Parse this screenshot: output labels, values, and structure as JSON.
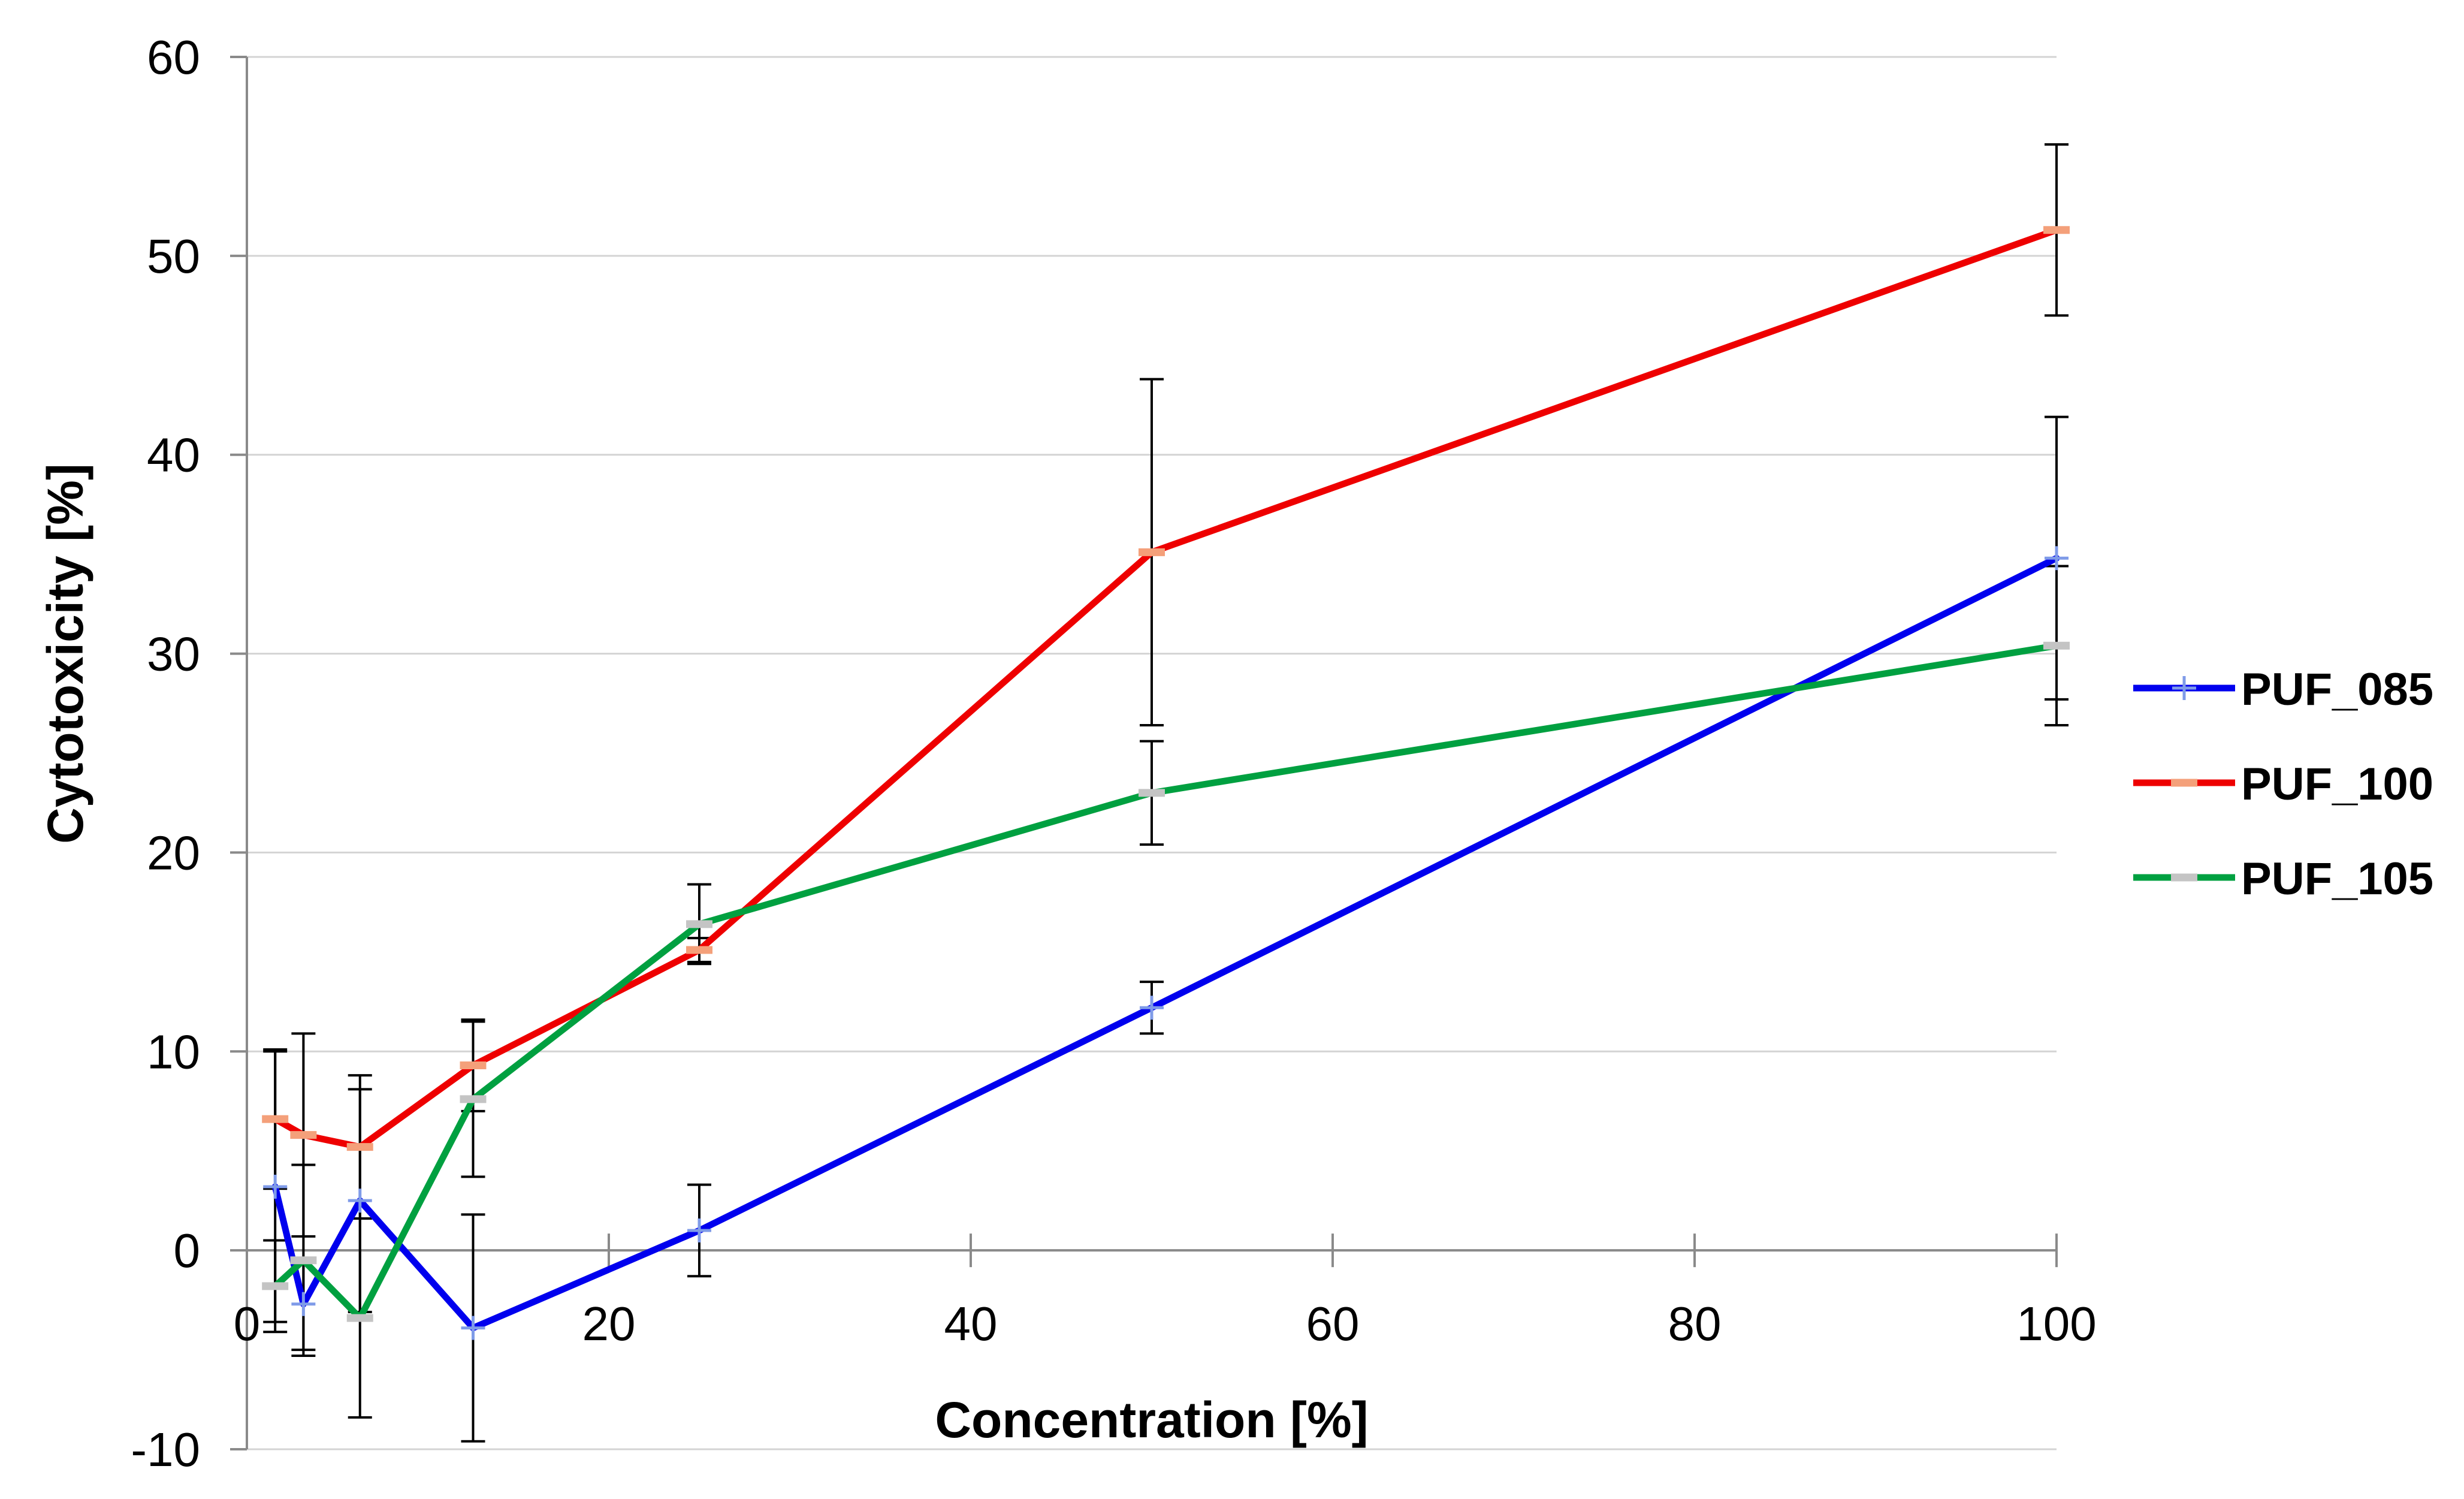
{
  "chart_data": {
    "type": "line",
    "title": "",
    "xlabel": "Concentration [%]",
    "ylabel": "Cytotoxicity [%]",
    "xlim": [
      0,
      100
    ],
    "ylim": [
      -10,
      60
    ],
    "xticks": [
      0,
      20,
      40,
      60,
      80,
      100
    ],
    "yticks": [
      -10,
      0,
      10,
      20,
      30,
      40,
      50,
      60
    ],
    "grid": "horizontal",
    "legend_position": "right",
    "series": [
      {
        "name": "PUF_085",
        "color": "#0000ee",
        "marker_color": "#7f9be8",
        "marker": "plus",
        "x": [
          1.5625,
          3.125,
          6.25,
          12.5,
          25,
          50,
          100
        ],
        "y": [
          3.2,
          -2.7,
          2.5,
          -3.9,
          1.0,
          12.2,
          34.8
        ],
        "err": [
          6.8,
          2.3,
          5.6,
          5.7,
          2.3,
          1.3,
          7.1
        ]
      },
      {
        "name": "PUF_100",
        "color": "#ee0000",
        "marker_color": "#f4a07a",
        "marker": "dash",
        "x": [
          1.5625,
          3.125,
          6.25,
          12.5,
          25,
          50,
          100
        ],
        "y": [
          6.6,
          5.8,
          5.2,
          9.3,
          15.1,
          35.1,
          51.3
        ],
        "err": [
          3.5,
          5.1,
          3.6,
          2.3,
          0.6,
          8.7,
          4.3
        ]
      },
      {
        "name": "PUF_105",
        "color": "#00a040",
        "marker_color": "#c4c4c4",
        "marker": "dash",
        "x": [
          1.5625,
          3.125,
          6.25,
          12.5,
          25,
          50,
          100
        ],
        "y": [
          -1.8,
          -0.5,
          -3.4,
          7.6,
          16.4,
          23.0,
          30.4
        ],
        "err": [
          2.3,
          4.8,
          5.0,
          3.9,
          2.0,
          2.6,
          4.0
        ]
      }
    ]
  }
}
